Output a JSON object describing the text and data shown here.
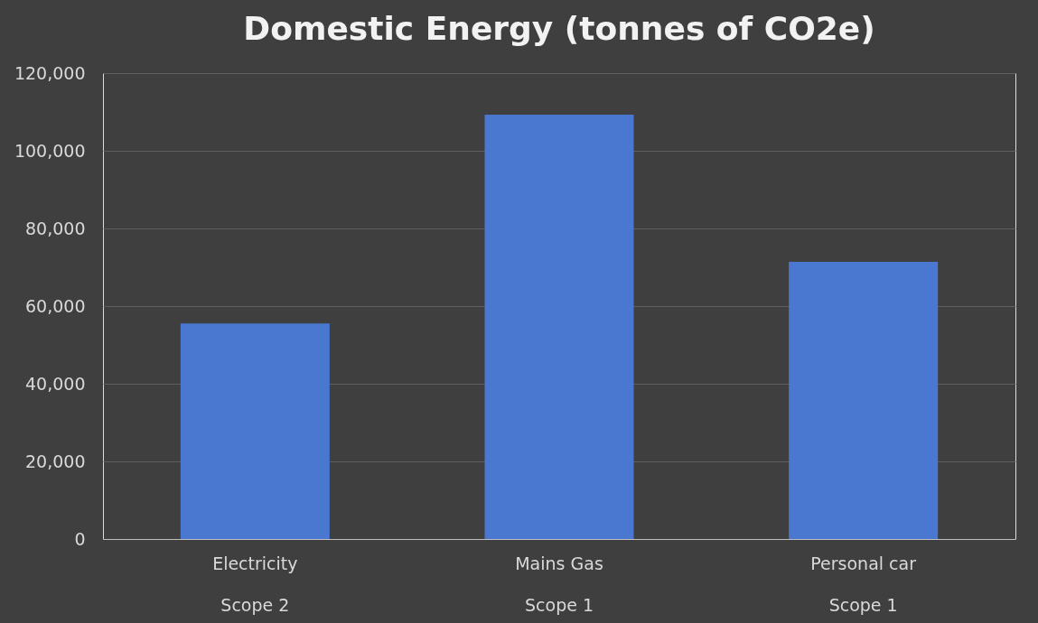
{
  "chart_data": {
    "type": "bar",
    "title": "Domestic Energy (tonnes of CO2e)",
    "categories": [
      "Electricity\nScope 2",
      "Mains Gas\nScope 1",
      "Personal car\nScope 1"
    ],
    "values": [
      55500,
      109300,
      71400
    ],
    "color": "#4a78d0",
    "ylim": [
      0,
      120000
    ],
    "yticks": [
      0,
      {
        "value": 20000,
        "label": "20,000"
      },
      {
        "value": 40000,
        "label": "40,000"
      },
      {
        "value": 60000,
        "label": "60,000"
      },
      {
        "value": 80000,
        "label": "80,000"
      },
      {
        "value": 100000,
        "label": "100,000"
      },
      {
        "value": 120000,
        "label": "120,000"
      }
    ],
    "grid": "y"
  }
}
